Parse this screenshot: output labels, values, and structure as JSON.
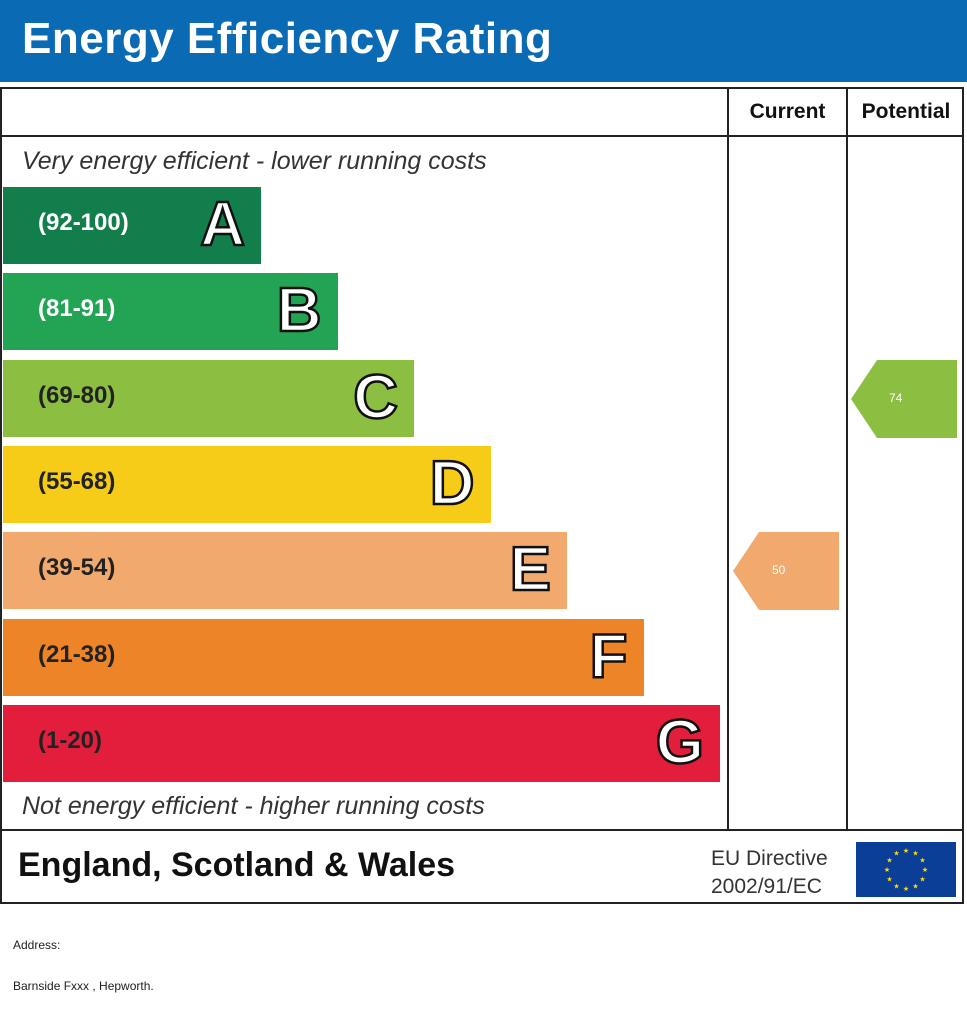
{
  "header": {
    "title": "Energy Efficiency Rating"
  },
  "columns": {
    "current": "Current",
    "potential": "Potential"
  },
  "notes": {
    "top": "Very energy efficient - lower running costs",
    "bottom": "Not energy efficient - higher running costs"
  },
  "chart_data": {
    "type": "bar",
    "title": "Energy Efficiency Rating",
    "categories": [
      "A",
      "B",
      "C",
      "D",
      "E",
      "F",
      "G"
    ],
    "bands": [
      {
        "letter": "A",
        "range": "(92-100)",
        "min": 92,
        "max": 100,
        "color": "#127e4c",
        "text_color": "#ffffff"
      },
      {
        "letter": "B",
        "range": "(81-91)",
        "min": 81,
        "max": 91,
        "color": "#22a454",
        "text_color": "#ffffff"
      },
      {
        "letter": "C",
        "range": "(69-80)",
        "min": 69,
        "max": 80,
        "color": "#8cbe42",
        "text_color": "#222222"
      },
      {
        "letter": "D",
        "range": "(55-68)",
        "min": 55,
        "max": 68,
        "color": "#f6cc18",
        "text_color": "#222222"
      },
      {
        "letter": "E",
        "range": "(39-54)",
        "min": 39,
        "max": 54,
        "color": "#f2a96d",
        "text_color": "#222222"
      },
      {
        "letter": "F",
        "range": "(21-38)",
        "min": 21,
        "max": 38,
        "color": "#ee8428",
        "text_color": "#222222"
      },
      {
        "letter": "G",
        "range": "(1-20)",
        "min": 1,
        "max": 20,
        "color": "#e31d3c",
        "text_color": "#222222"
      }
    ],
    "current": {
      "value": 50,
      "band": "E",
      "color": "#f2a96d"
    },
    "potential": {
      "value": 74,
      "band": "C",
      "color": "#8cbe42"
    }
  },
  "footer": {
    "region": "England, Scotland & Wales",
    "directive_line1": "EU Directive",
    "directive_line2": "2002/91/EC"
  },
  "flag": {
    "icon": "eu-flag-icon",
    "background": "#0b3e96",
    "star_color": "#ffdd00"
  },
  "address": {
    "label": "Address:",
    "value": "Barnside Fxxx , Hepworth."
  }
}
